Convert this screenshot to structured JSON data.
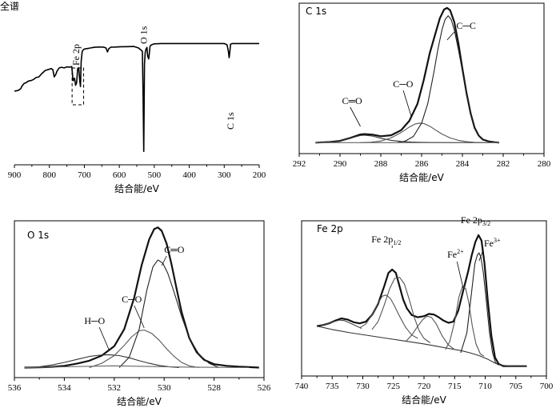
{
  "chart_data": [
    {
      "type": "line",
      "title": "全谱",
      "xlabel": "结合能/eV",
      "xlim": [
        900,
        200
      ],
      "xticks": [
        900,
        800,
        700,
        600,
        500,
        400,
        300,
        200
      ],
      "series": [
        {
          "color": "#000000",
          "x": [
            900,
            895,
            888,
            882,
            878,
            872,
            866,
            860,
            852,
            845,
            838,
            830,
            822,
            812,
            802,
            795,
            790,
            786,
            782,
            778,
            772,
            765,
            758,
            750,
            742,
            736,
            732,
            728,
            725,
            722,
            719,
            716,
            713,
            711,
            709,
            706,
            702,
            696,
            688,
            678,
            668,
            655,
            645,
            638,
            634,
            630,
            624,
            612,
            595,
            575,
            558,
            545,
            538,
            534,
            532,
            530,
            528,
            526,
            524,
            521,
            519,
            516,
            512,
            508,
            500,
            480,
            440,
            400,
            360,
            320,
            300,
            292,
            288,
            286,
            284,
            282,
            276,
            260,
            240,
            220,
            200
          ],
          "y": [
            0.0,
            0.1,
            0.6,
            1.8,
            4.0,
            6.0,
            6.6,
            7.8,
            8.2,
            9.0,
            10.5,
            11.0,
            13.5,
            16.0,
            16.8,
            17.5,
            16.6,
            11.0,
            12.8,
            15.6,
            18.0,
            18.5,
            18.0,
            18.8,
            18.6,
            19.0,
            8.0,
            10.0,
            4.5,
            6.5,
            17.5,
            18.2,
            8.0,
            3.5,
            23.5,
            31.0,
            32.5,
            33.0,
            33.3,
            33.8,
            34.2,
            34.3,
            34.2,
            33.5,
            30.5,
            33.0,
            34.2,
            34.3,
            34.5,
            34.6,
            34.7,
            33.5,
            32.0,
            31.0,
            -6.0,
            -47.0,
            21.0,
            30.0,
            32.5,
            34.0,
            27.0,
            25.0,
            35.0,
            36.0,
            36.8,
            37.0,
            37.0,
            37.0,
            37.0,
            37.0,
            37.0,
            36.0,
            31.0,
            26.0,
            30.5,
            36.6,
            37.0,
            37.0,
            37.0,
            37.0,
            37.0
          ]
        }
      ],
      "annotations": [
        {
          "label": "Fe 2p",
          "x": 719
        },
        {
          "label": "O 1s",
          "x": 530
        },
        {
          "label": "C 1s",
          "x": 285
        }
      ]
    },
    {
      "type": "line",
      "title": "C 1s",
      "xlabel": "结合能/eV",
      "xlim": [
        292,
        280
      ],
      "xticks": [
        292,
        290,
        288,
        286,
        284,
        282,
        280
      ],
      "series": [
        {
          "color": "#111111",
          "x": [
            291.2,
            290.5,
            290.0,
            289.5,
            289.0,
            288.8,
            288.4,
            288.0,
            287.5,
            287.0,
            286.6,
            286.2,
            285.9,
            285.6,
            285.3,
            285.1,
            284.9,
            284.75,
            284.6,
            284.4,
            284.2,
            284.0,
            283.8,
            283.6,
            283.4,
            283.2,
            283.0,
            282.7,
            282.4,
            282.2
          ],
          "y": [
            0.0,
            0.8,
            2.2,
            6.0,
            10.5,
            11.0,
            10.2,
            8.2,
            9.4,
            16.0,
            28.0,
            50.0,
            80.0,
            115.0,
            142.0,
            160.0,
            171.0,
            173.0,
            170.0,
            155.0,
            128.0,
            95.0,
            64.0,
            38.0,
            19.0,
            9.0,
            4.0,
            1.5,
            0.5,
            0.0
          ]
        },
        {
          "color": "#333333",
          "x": [
            291.2,
            290.5,
            290.0,
            289.5,
            289.0,
            288.8,
            288.4,
            288.0,
            287.5,
            287.0,
            286.5,
            286.0,
            285.5,
            285.0,
            284.5,
            284.0,
            283.5,
            283.0,
            282.4,
            282.2
          ],
          "y": [
            0.0,
            0.8,
            2.2,
            5.8,
            9.2,
            9.6,
            8.4,
            5.6,
            3.0,
            1.5,
            0.8,
            0.4,
            0.2,
            0.1,
            0.0,
            0.0,
            0.0,
            0.0,
            0.0,
            0.0
          ]
        },
        {
          "color": "#555555",
          "x": [
            289.0,
            288.5,
            288.0,
            287.5,
            287.0,
            286.6,
            286.3,
            286.1,
            285.9,
            285.6,
            285.3,
            285.0,
            284.6,
            284.2,
            283.8,
            283.4,
            283.0
          ],
          "y": [
            0.0,
            0.5,
            2.0,
            6.0,
            13.0,
            20.0,
            24.0,
            25.0,
            24.5,
            21.0,
            16.0,
            11.0,
            6.0,
            3.0,
            1.2,
            0.4,
            0.0
          ]
        },
        {
          "color": "#222222",
          "x": [
            287.2,
            286.8,
            286.4,
            286.0,
            285.7,
            285.4,
            285.2,
            285.0,
            284.85,
            284.7,
            284.55,
            284.4,
            284.2,
            284.0,
            283.8,
            283.6,
            283.4,
            283.2,
            283.0,
            282.6
          ],
          "y": [
            0.0,
            2.0,
            8.0,
            25.0,
            50.0,
            90.0,
            120.0,
            145.0,
            158.0,
            163.0,
            158.0,
            145.0,
            120.0,
            92.0,
            62.0,
            37.0,
            19.0,
            9.0,
            4.0,
            0.0
          ]
        },
        {
          "color": "#666666",
          "x": [
            291.2,
            288.0,
            285.0,
            282.2
          ],
          "y": [
            0.0,
            0.0,
            0.0,
            0.0
          ]
        }
      ],
      "annotations": [
        {
          "label": "C═O",
          "x": 289.4
        },
        {
          "label": "C─O",
          "x": 286.9
        },
        {
          "label": "C─C",
          "x": 284.0
        }
      ]
    },
    {
      "type": "line",
      "title": "O 1s",
      "xlabel": "结合能/eV",
      "xlim": [
        536,
        526
      ],
      "xticks": [
        536,
        534,
        532,
        530,
        528,
        526
      ],
      "series": [
        {
          "color": "#111111",
          "x": [
            535.6,
            535.0,
            534.5,
            534.0,
            533.5,
            533.0,
            532.5,
            532.0,
            531.6,
            531.2,
            530.9,
            530.6,
            530.4,
            530.25,
            530.1,
            529.9,
            529.7,
            529.5,
            529.3,
            529.0,
            528.7,
            528.4,
            528.0,
            527.5,
            527.0,
            526.6,
            526.2
          ],
          "y": [
            0.0,
            0.2,
            0.8,
            2.0,
            4.5,
            8.0,
            14.0,
            25.0,
            45.0,
            82.0,
            120.0,
            150.0,
            162.0,
            164.0,
            160.0,
            145.0,
            120.0,
            92.0,
            65.0,
            35.0,
            18.0,
            9.0,
            4.0,
            2.0,
            1.0,
            0.5,
            0.0
          ]
        },
        {
          "color": "#333333",
          "x": [
            535.6,
            535.0,
            534.5,
            534.0,
            533.5,
            533.0,
            532.6,
            532.2,
            531.8,
            531.4,
            531.0,
            530.6,
            530.2,
            529.8,
            529.4
          ],
          "y": [
            0.0,
            1.0,
            3.0,
            6.0,
            9.5,
            13.0,
            14.5,
            15.0,
            14.0,
            11.5,
            8.0,
            5.0,
            2.5,
            1.0,
            0.0
          ]
        },
        {
          "color": "#555555",
          "x": [
            533.0,
            532.5,
            532.0,
            531.6,
            531.3,
            531.0,
            530.8,
            530.5,
            530.2,
            529.9,
            529.6,
            529.3,
            529.0,
            528.6
          ],
          "y": [
            0.0,
            5.0,
            14.0,
            26.0,
            36.0,
            43.0,
            44.0,
            40.0,
            32.0,
            22.0,
            13.0,
            6.0,
            2.0,
            0.0
          ]
        },
        {
          "color": "#222222",
          "x": [
            531.8,
            531.4,
            531.0,
            530.7,
            530.45,
            530.25,
            530.05,
            529.85,
            529.6,
            529.3,
            529.0,
            528.6,
            528.2,
            527.8
          ],
          "y": [
            0.0,
            12.0,
            45.0,
            90.0,
            118.0,
            126.0,
            122.0,
            110.0,
            88.0,
            60.0,
            35.0,
            15.0,
            5.0,
            0.0
          ]
        },
        {
          "color": "#666666",
          "x": [
            535.6,
            532.0,
            529.0,
            526.6
          ],
          "y": [
            0.0,
            2.0,
            0.5,
            0.0
          ]
        }
      ],
      "annotations": [
        {
          "label": "H─O",
          "x": 532.6
        },
        {
          "label": "C─O",
          "x": 531.2
        },
        {
          "label": "C═O",
          "x": 529.6
        }
      ]
    },
    {
      "type": "line",
      "title": "Fe 2p",
      "xlabel": "结合能/eV",
      "xlim": [
        740,
        700
      ],
      "xticks": [
        740,
        735,
        730,
        725,
        720,
        715,
        710,
        705,
        700
      ],
      "series": [
        {
          "color": "#111111",
          "x": [
            737.5,
            736.5,
            735.5,
            734.5,
            733.5,
            732.5,
            731.5,
            730.5,
            729.5,
            728.5,
            727.5,
            726.5,
            725.8,
            725.2,
            724.6,
            724.0,
            723.4,
            722.8,
            722.0,
            721.0,
            720.0,
            719.2,
            718.4,
            717.6,
            716.8,
            716.0,
            715.2,
            714.4,
            713.6,
            712.8,
            712.2,
            711.6,
            711.1,
            710.6,
            710.1,
            709.6,
            709.0,
            708.4,
            707.8,
            707.0,
            706.0,
            705.0,
            704.0,
            703.2
          ],
          "y": [
            36.0,
            37.0,
            38.5,
            41.0,
            43.0,
            42.0,
            39.5,
            38.5,
            40.0,
            46.0,
            56.0,
            72.0,
            84.0,
            87.0,
            84.0,
            72.0,
            60.0,
            52.0,
            46.0,
            44.0,
            45.0,
            47.0,
            46.5,
            44.0,
            41.0,
            39.0,
            40.0,
            50.0,
            68.0,
            85.0,
            100.0,
            112.0,
            118.0,
            113.0,
            92.0,
            60.0,
            28.0,
            8.0,
            2.0,
            0.0,
            0.0,
            0.0,
            0.0,
            0.0
          ]
        },
        {
          "color": "#333333",
          "x": [
            737.5,
            735.0,
            732.0,
            729.0,
            726.0,
            723.0,
            720.0,
            718.0,
            716.0,
            714.0,
            712.5,
            711.0,
            709.5,
            708.5,
            707.5,
            706.0,
            704.5,
            703.2
          ],
          "y": [
            36.0,
            33.0,
            30.0,
            27.5,
            25.0,
            22.5,
            20.0,
            18.0,
            16.0,
            14.0,
            12.0,
            9.5,
            6.0,
            3.0,
            1.0,
            0.0,
            0.0,
            0.0
          ]
        },
        {
          "color": "#444444",
          "x": [
            737.0,
            735.5,
            734.5,
            733.8,
            733.0,
            732.2,
            731.2,
            730.2
          ],
          "y": [
            36.0,
            38.5,
            40.5,
            41.5,
            41.0,
            39.0,
            36.5,
            34.0
          ]
        },
        {
          "color": "#555555",
          "x": [
            730.5,
            729.5,
            728.5,
            727.5,
            726.8,
            726.2,
            725.5,
            724.8,
            724.0,
            723.0,
            722.0,
            721.0
          ],
          "y": [
            34.5,
            38.0,
            46.0,
            57.0,
            63.0,
            64.0,
            61.0,
            54.0,
            45.0,
            35.0,
            28.0,
            25.0
          ]
        },
        {
          "color": "#555555",
          "x": [
            728.5,
            727.5,
            726.5,
            725.6,
            724.8,
            724.0,
            723.2,
            722.4,
            721.6,
            720.8,
            720.0,
            719.0
          ],
          "y": [
            33.0,
            40.0,
            55.0,
            70.0,
            79.0,
            80.0,
            74.0,
            60.0,
            44.0,
            32.0,
            25.0,
            21.0
          ]
        },
        {
          "color": "#555555",
          "x": [
            723.0,
            722.0,
            721.0,
            720.2,
            719.5,
            718.8,
            718.0,
            717.0,
            716.0,
            715.0
          ],
          "y": [
            22.0,
            28.0,
            36.0,
            42.0,
            45.0,
            44.0,
            38.0,
            27.0,
            19.0,
            15.0
          ]
        },
        {
          "color": "#555555",
          "x": [
            716.5,
            715.8,
            715.0,
            714.3,
            713.7,
            713.2,
            712.7,
            712.1,
            711.5,
            710.8,
            710.2
          ],
          "y": [
            15.0,
            22.0,
            40.0,
            62.0,
            72.0,
            70.0,
            58.0,
            36.0,
            20.0,
            11.0,
            9.0
          ]
        },
        {
          "color": "#222222",
          "x": [
            714.0,
            713.0,
            712.2,
            711.7,
            711.3,
            711.0,
            710.7,
            710.3,
            709.8,
            709.3,
            708.8,
            708.3,
            707.8
          ],
          "y": [
            12.0,
            30.0,
            68.0,
            92.0,
            100.0,
            102.0,
            98.0,
            84.0,
            58.0,
            30.0,
            12.0,
            3.0,
            1.0
          ]
        }
      ],
      "annotations": [
        {
          "label": "Fe 2p",
          "sub": "1/2",
          "x": 725
        },
        {
          "label": "Fe",
          "sup": "2+",
          "x": 713.6
        },
        {
          "label": "Fe 2p",
          "sub": "3/2",
          "x": 711.1
        },
        {
          "label": "Fe",
          "sup": "3+",
          "x": 710.8
        }
      ]
    }
  ]
}
